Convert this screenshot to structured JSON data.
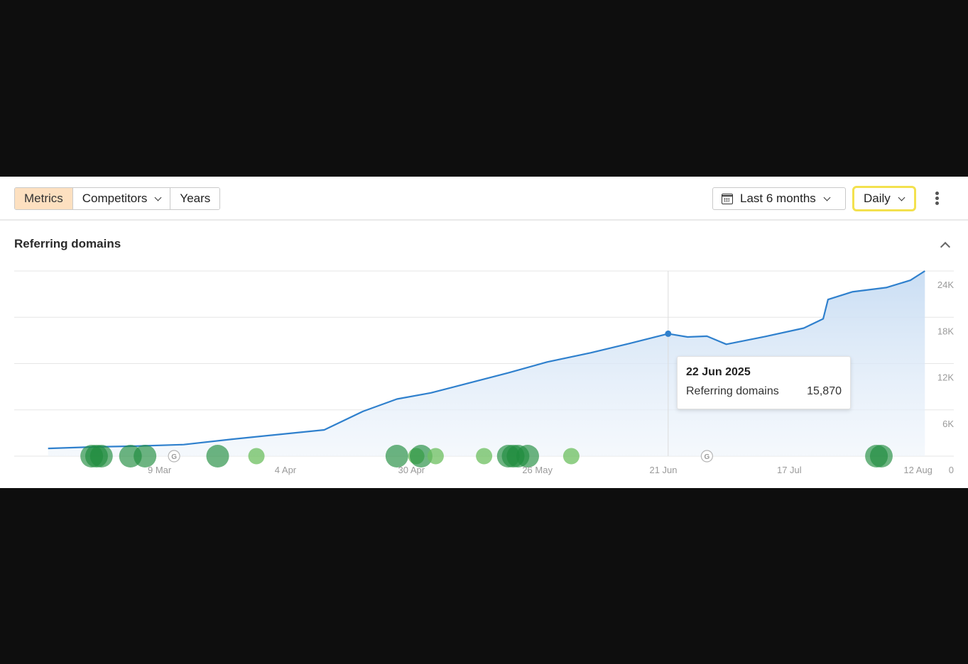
{
  "toolbar": {
    "tabs": [
      {
        "label": "Metrics",
        "active": true
      },
      {
        "label": "Competitors",
        "has_dropdown": true
      },
      {
        "label": "Years"
      }
    ],
    "date_range": {
      "label": "Last 6 months",
      "icon": "calendar-icon"
    },
    "interval": {
      "label": "Daily",
      "highlight_color": "#f3e14e"
    },
    "more_icon": "kebab-menu-icon"
  },
  "section": {
    "title": "Referring domains",
    "collapse_icon": "chevron-up-icon"
  },
  "tooltip": {
    "date": "22 Jun 2025",
    "metric_label": "Referring domains",
    "metric_value": "15,870"
  },
  "colors": {
    "line": "#2f80cd",
    "area_top": "#c7dcf3",
    "accent_active_tab": "#fde0c0",
    "marker_dark": "#1f8c3d",
    "marker_light": "#6cbf5f"
  },
  "chart_data": {
    "type": "area",
    "title": "Referring domains",
    "x_tick_labels": [
      "9 Mar",
      "4 Apr",
      "30 Apr",
      "26 May",
      "21 Jun",
      "17 Jul",
      "12 Aug"
    ],
    "y_tick_labels": [
      "24K",
      "18K",
      "12K",
      "6K",
      "0"
    ],
    "ylim": [
      0,
      24000
    ],
    "y_axis_side": "right",
    "grid": true,
    "series": [
      {
        "name": "Referring domains",
        "x": [
          "2025-02-14",
          "2025-02-24",
          "2025-03-04",
          "2025-03-14",
          "2025-03-24",
          "2025-04-04",
          "2025-04-12",
          "2025-04-20",
          "2025-04-27",
          "2025-05-04",
          "2025-05-12",
          "2025-05-20",
          "2025-05-28",
          "2025-06-06",
          "2025-06-14",
          "2025-06-22",
          "2025-06-26",
          "2025-06-30",
          "2025-07-04",
          "2025-07-12",
          "2025-07-20",
          "2025-07-24",
          "2025-07-25",
          "2025-07-30",
          "2025-08-06",
          "2025-08-11",
          "2025-08-14"
        ],
        "y": [
          1000,
          1200,
          1300,
          1500,
          2200,
          2900,
          3400,
          5800,
          7400,
          8200,
          9500,
          10800,
          12200,
          13400,
          14600,
          15870,
          15450,
          15550,
          14500,
          15500,
          16600,
          17800,
          20300,
          21300,
          21850,
          22800,
          24000
        ]
      }
    ],
    "event_markers": [
      {
        "date": "2025-02-23",
        "shade": "dark"
      },
      {
        "date": "2025-02-24",
        "shade": "dark"
      },
      {
        "date": "2025-02-25",
        "shade": "dark"
      },
      {
        "date": "2025-03-03",
        "shade": "dark"
      },
      {
        "date": "2025-03-06",
        "shade": "dark"
      },
      {
        "date": "2025-03-21",
        "shade": "dark"
      },
      {
        "date": "2025-03-29",
        "shade": "light"
      },
      {
        "date": "2025-04-27",
        "shade": "dark"
      },
      {
        "date": "2025-05-01",
        "shade": "light"
      },
      {
        "date": "2025-05-02",
        "shade": "dark"
      },
      {
        "date": "2025-05-05",
        "shade": "light"
      },
      {
        "date": "2025-05-15",
        "shade": "light"
      },
      {
        "date": "2025-05-20",
        "shade": "dark"
      },
      {
        "date": "2025-05-21",
        "shade": "dark"
      },
      {
        "date": "2025-05-22",
        "shade": "dark"
      },
      {
        "date": "2025-05-24",
        "shade": "dark"
      },
      {
        "date": "2025-06-02",
        "shade": "light"
      },
      {
        "date": "2025-08-04",
        "shade": "dark"
      },
      {
        "date": "2025-08-05",
        "shade": "dark"
      }
    ],
    "google_update_markers": [
      "2025-03-12",
      "2025-06-30"
    ],
    "highlighted_point": {
      "date": "2025-06-22",
      "value": 15870
    }
  }
}
